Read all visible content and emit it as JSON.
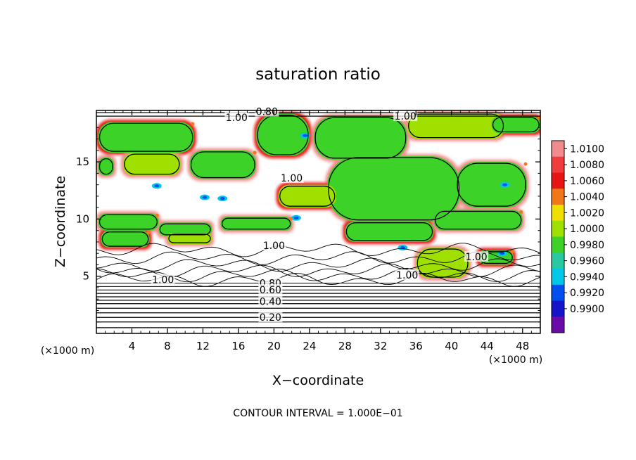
{
  "chart_data": {
    "type": "heatmap",
    "title": "saturation ratio",
    "xlabel": "X−coordinate",
    "ylabel": "Z−coordinate",
    "x_unit": "(×1000 m)",
    "y_unit": "(×1000 m)",
    "xlim": [
      0,
      50
    ],
    "ylim": [
      0,
      19.5
    ],
    "x_ticks": [
      4,
      8,
      12,
      16,
      20,
      24,
      28,
      32,
      36,
      40,
      44,
      48
    ],
    "y_ticks": [
      5,
      10,
      15
    ],
    "footer": "CONTOUR INTERVAL = 1.000E−01",
    "colorbar": {
      "levels": [
        {
          "label": "1.0100",
          "color": "#f08c8c"
        },
        {
          "label": "1.0080",
          "color": "#f03c3c"
        },
        {
          "label": "1.0060",
          "color": "#e81414"
        },
        {
          "label": "1.0040",
          "color": "#f07818"
        },
        {
          "label": "1.0020",
          "color": "#f0e000"
        },
        {
          "label": "1.0000",
          "color": "#a0e000"
        },
        {
          "label": "0.9980",
          "color": "#3cd228"
        },
        {
          "label": "0.9960",
          "color": "#28c8a0"
        },
        {
          "label": "0.9940",
          "color": "#00c8e6"
        },
        {
          "label": "0.9920",
          "color": "#0050f0"
        },
        {
          "label": "0.9900",
          "color": "#1414c8"
        },
        {
          "label": "",
          "color": "#6a0aa8"
        }
      ]
    },
    "contour_labels": [
      {
        "text": "0.80",
        "x": 19.2,
        "z": 19.4
      },
      {
        "text": "1.00",
        "x": 15.8,
        "z": 18.9
      },
      {
        "text": "1.00",
        "x": 34.8,
        "z": 19.0
      },
      {
        "text": "1.00",
        "x": 22.0,
        "z": 13.6
      },
      {
        "text": "1.00",
        "x": 20.0,
        "z": 7.7
      },
      {
        "text": "1.00",
        "x": 42.8,
        "z": 6.7
      },
      {
        "text": "1.00",
        "x": 35.0,
        "z": 5.1
      },
      {
        "text": "1.00",
        "x": 7.5,
        "z": 4.7
      },
      {
        "text": "0.80",
        "x": 19.6,
        "z": 4.4
      },
      {
        "text": "0.60",
        "x": 19.6,
        "z": 3.8
      },
      {
        "text": "0.40",
        "x": 19.6,
        "z": 2.8
      },
      {
        "text": "0.20",
        "x": 19.6,
        "z": 1.4
      }
    ],
    "green_regions": [
      {
        "x": [
          0.2,
          11.0
        ],
        "z": [
          15.8,
          18.5
        ]
      },
      {
        "x": [
          3.0,
          9.5
        ],
        "z": [
          13.8,
          15.8
        ]
      },
      {
        "x": [
          10.5,
          18.0
        ],
        "z": [
          13.5,
          16.0
        ]
      },
      {
        "x": [
          18.0,
          24.0
        ],
        "z": [
          15.5,
          19.2
        ]
      },
      {
        "x": [
          24.5,
          35.0
        ],
        "z": [
          15.2,
          19.0
        ]
      },
      {
        "x": [
          35.0,
          46.0
        ],
        "z": [
          17.0,
          19.3
        ]
      },
      {
        "x": [
          44.5,
          50.0
        ],
        "z": [
          17.5,
          19.0
        ]
      },
      {
        "x": [
          26.0,
          41.0
        ],
        "z": [
          9.8,
          15.5
        ]
      },
      {
        "x": [
          40.5,
          48.5
        ],
        "z": [
          11.0,
          15.0
        ]
      },
      {
        "x": [
          20.5,
          27.0
        ],
        "z": [
          11.0,
          13.0
        ]
      },
      {
        "x": [
          0.2,
          7.0
        ],
        "z": [
          9.0,
          10.5
        ]
      },
      {
        "x": [
          7.0,
          13.0
        ],
        "z": [
          8.5,
          9.7
        ]
      },
      {
        "x": [
          0.5,
          6.0
        ],
        "z": [
          7.5,
          9.0
        ]
      },
      {
        "x": [
          8.0,
          13.0
        ],
        "z": [
          7.8,
          8.8
        ]
      },
      {
        "x": [
          14.0,
          22.0
        ],
        "z": [
          9.0,
          10.2
        ]
      },
      {
        "x": [
          28.0,
          38.0
        ],
        "z": [
          8.0,
          9.8
        ]
      },
      {
        "x": [
          38.0,
          48.0
        ],
        "z": [
          9.0,
          10.8
        ]
      },
      {
        "x": [
          36.0,
          42.0
        ],
        "z": [
          4.8,
          7.5
        ]
      },
      {
        "x": [
          43.0,
          47.0
        ],
        "z": [
          6.0,
          7.3
        ]
      },
      {
        "x": [
          0.2,
          2.0
        ],
        "z": [
          13.8,
          15.4
        ]
      }
    ],
    "moist_spots": [
      {
        "x": 12.2,
        "z": 11.9
      },
      {
        "x": 14.2,
        "z": 11.8
      },
      {
        "x": 6.8,
        "z": 12.9
      },
      {
        "x": 23.5,
        "z": 17.3
      },
      {
        "x": 46.0,
        "z": 13.0
      },
      {
        "x": 45.7,
        "z": 7.0
      },
      {
        "x": 22.5,
        "z": 10.1
      },
      {
        "x": 34.5,
        "z": 7.5
      }
    ]
  }
}
